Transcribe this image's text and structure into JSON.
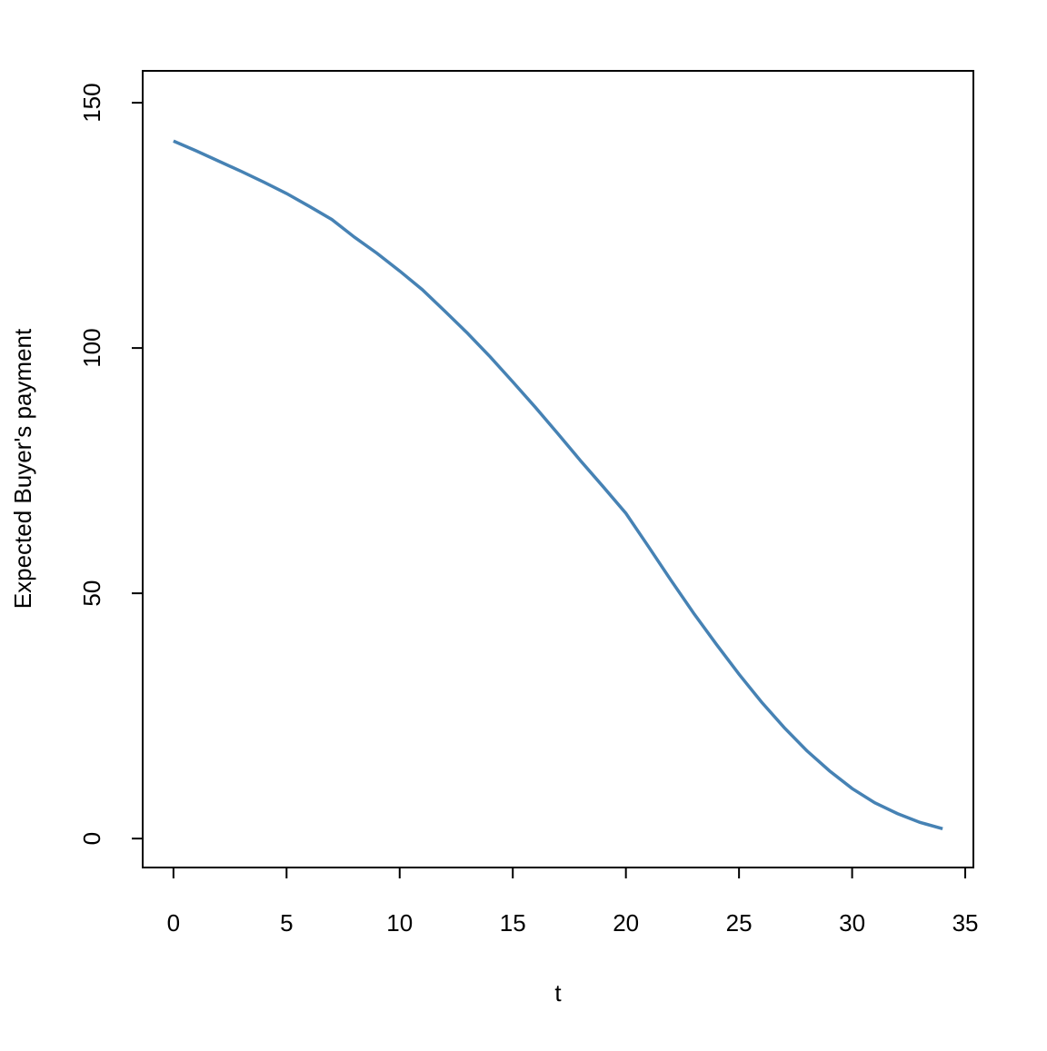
{
  "chart_data": {
    "type": "line",
    "xlabel": "t",
    "ylabel": "Expected Buyer's payment",
    "x": [
      0,
      1,
      2,
      3,
      4,
      5,
      6,
      7,
      8,
      9,
      10,
      11,
      12,
      13,
      14,
      15,
      16,
      17,
      18,
      19,
      20,
      21,
      22,
      23,
      24,
      25,
      26,
      27,
      28,
      29,
      30,
      31,
      32,
      33,
      34
    ],
    "series": [
      {
        "color": "#4682b4",
        "values": [
          142.2,
          140.2,
          138.1,
          136.0,
          133.8,
          131.5,
          128.9,
          126.2,
          122.6,
          119.3,
          115.7,
          111.9,
          107.5,
          103.0,
          98.2,
          93.1,
          87.9,
          82.5,
          77.0,
          71.7,
          66.3,
          59.5,
          52.6,
          45.9,
          39.6,
          33.5,
          27.8,
          22.6,
          17.9,
          13.8,
          10.2,
          7.3,
          5.1,
          3.3,
          2.0
        ]
      }
    ],
    "xlim": [
      -1.36,
      35.36
    ],
    "xticks": [
      0,
      5,
      10,
      15,
      20,
      25,
      30,
      35
    ],
    "ylim": [
      -5.9,
      156.5
    ],
    "yticks": [
      0,
      50,
      100,
      150
    ]
  }
}
